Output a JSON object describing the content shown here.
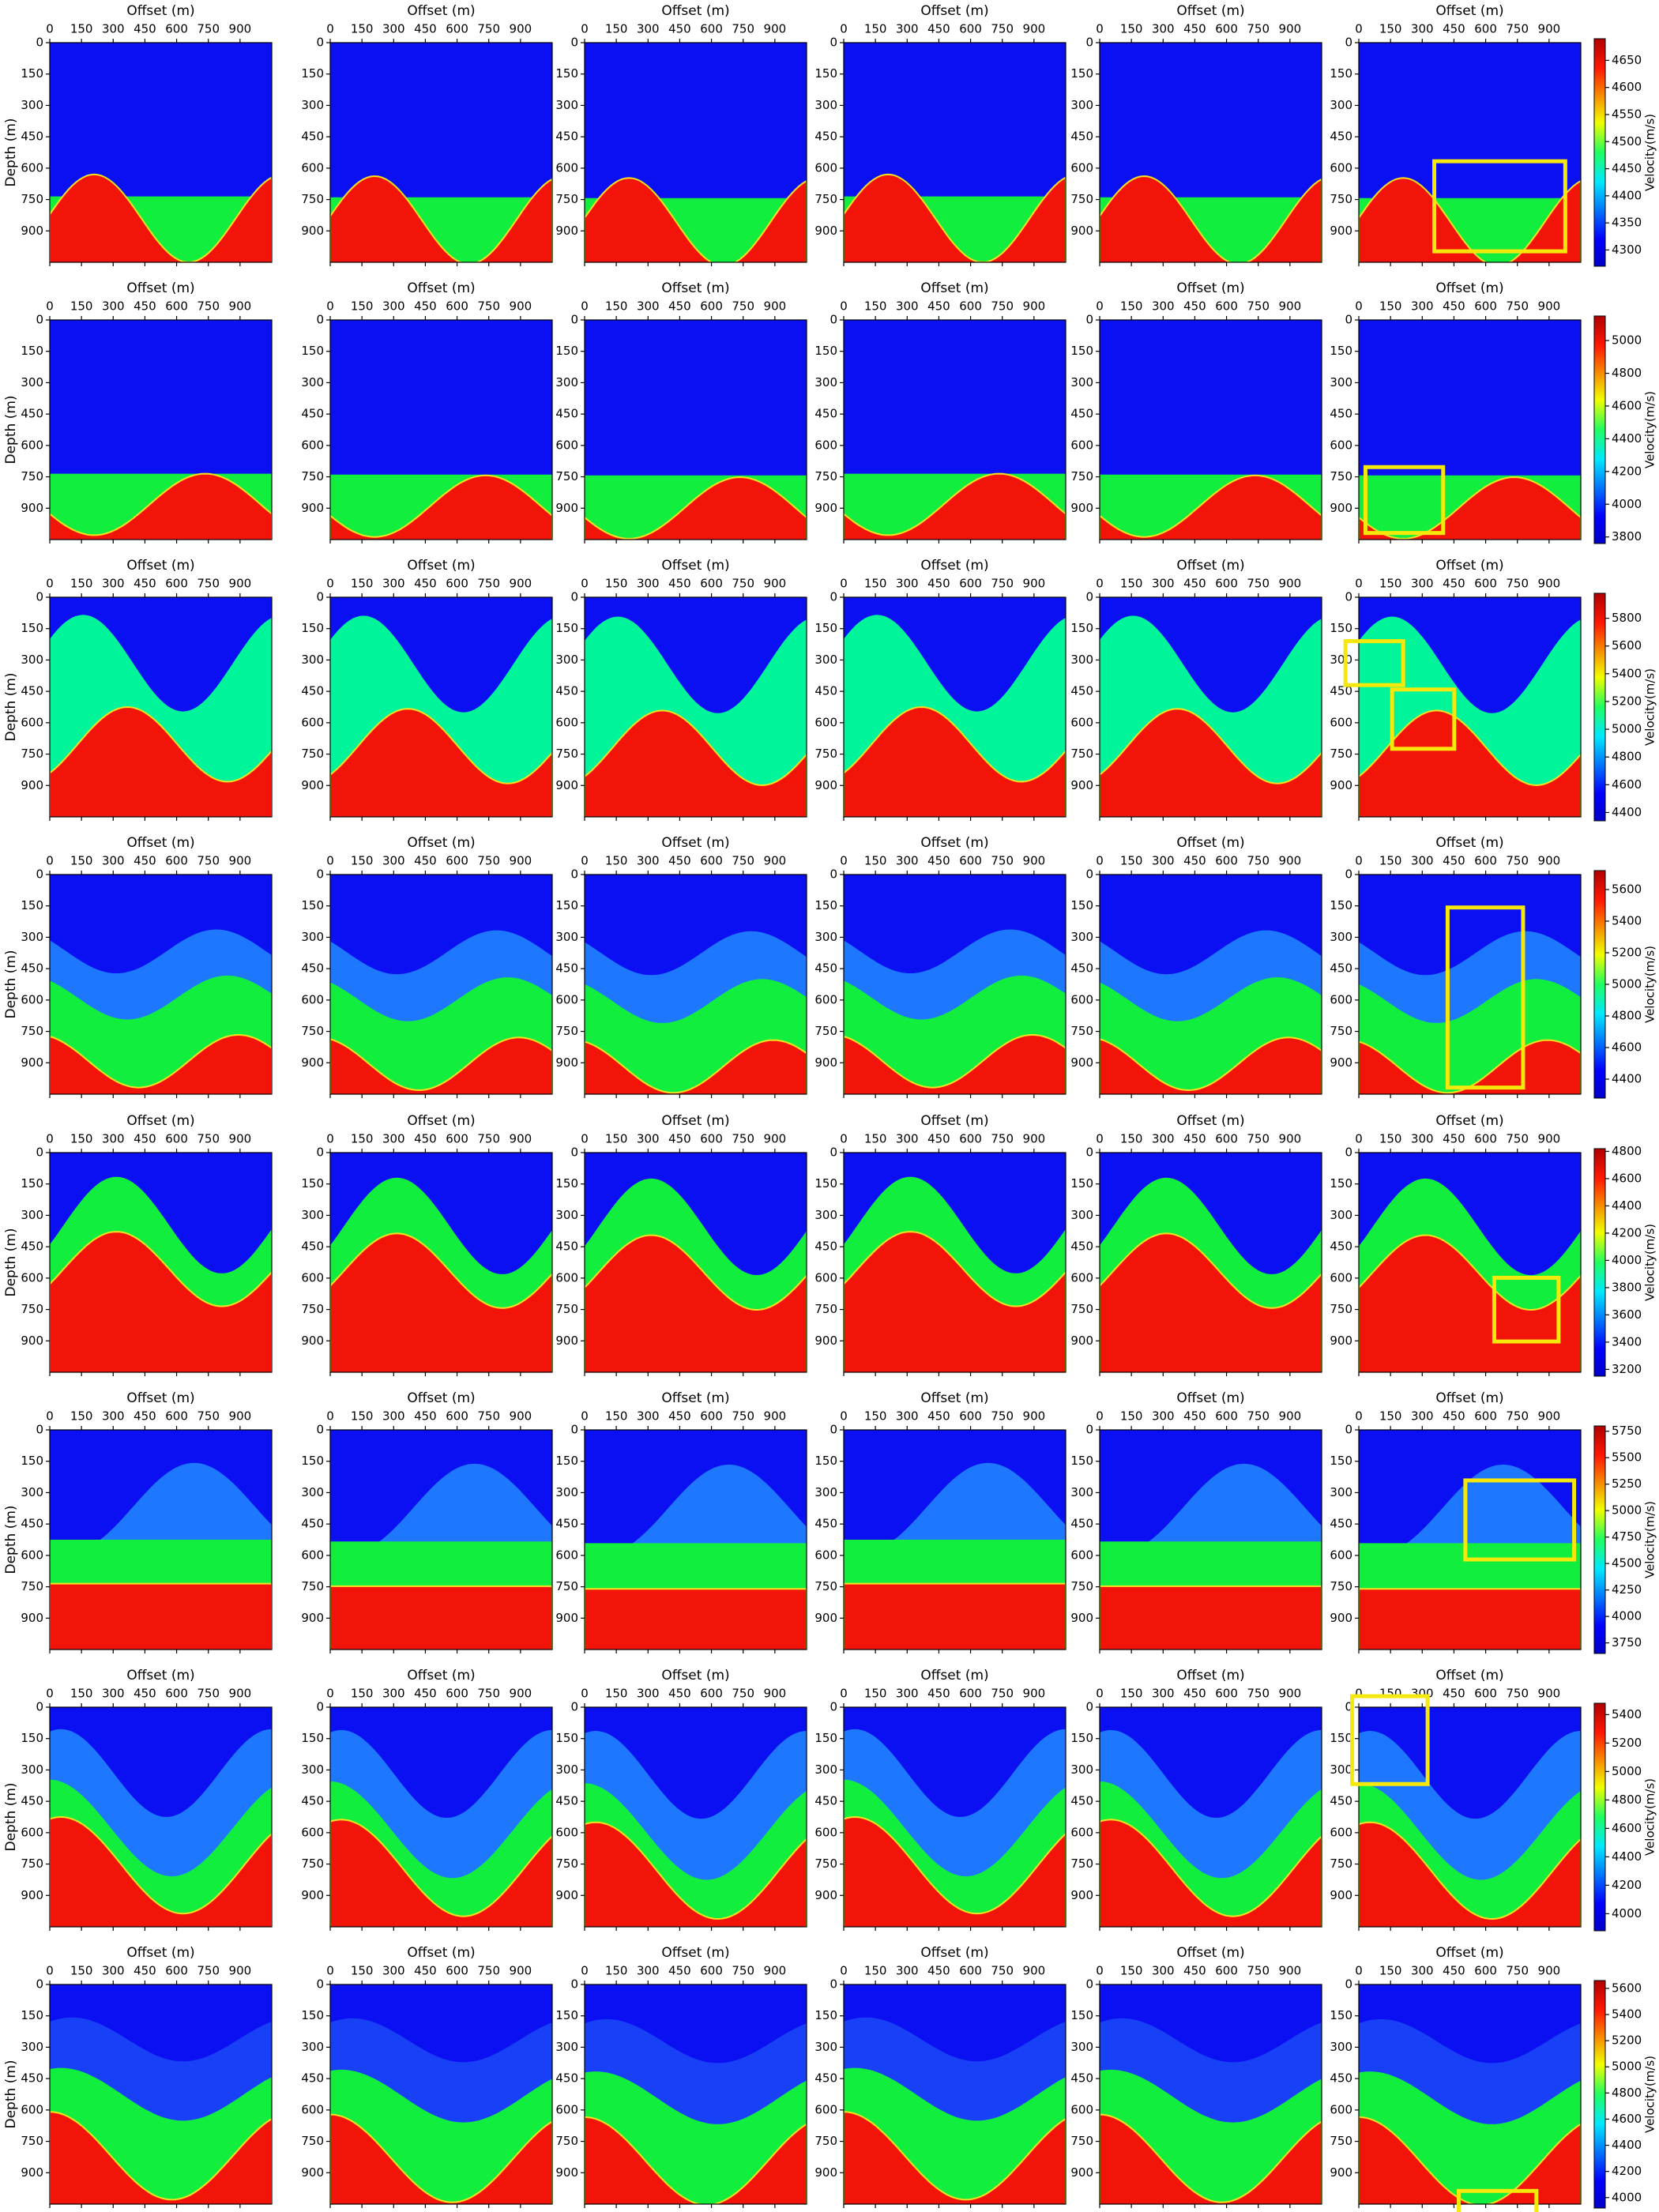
{
  "figure": {
    "panel_title": "Offset (m)",
    "y_label": "Depth (m)",
    "colorbar_label": "Velocity(m/s)",
    "xlim": [
      0,
      1050
    ],
    "ylim": [
      0,
      1050
    ],
    "xticks": [
      0,
      150,
      300,
      450,
      600,
      750,
      900
    ],
    "yticks": [
      0,
      150,
      300,
      450,
      600,
      750,
      900
    ],
    "rows": [
      {
        "clim": [
          4270,
          4690
        ],
        "cticks": [
          4300,
          4350,
          4400,
          4450,
          4500,
          4550,
          4600,
          4650
        ]
      },
      {
        "clim": [
          3760,
          5150
        ],
        "cticks": [
          3800,
          4000,
          4200,
          4400,
          4600,
          4800,
          5000
        ]
      },
      {
        "clim": [
          4340,
          5980
        ],
        "cticks": [
          4400,
          4600,
          4800,
          5000,
          5200,
          5400,
          5600,
          5800
        ]
      },
      {
        "clim": [
          4280,
          5720
        ],
        "cticks": [
          4400,
          4600,
          4800,
          5000,
          5200,
          5400,
          5600
        ]
      },
      {
        "clim": [
          3150,
          4820
        ],
        "cticks": [
          3200,
          3400,
          3600,
          3800,
          4000,
          4200,
          4400,
          4600,
          4800
        ]
      },
      {
        "clim": [
          3650,
          5800
        ],
        "cticks": [
          3750,
          4000,
          4250,
          4500,
          4750,
          5000,
          5250,
          5500,
          5750
        ]
      },
      {
        "clim": [
          3880,
          5480
        ],
        "cticks": [
          4000,
          4200,
          4400,
          4600,
          4800,
          5000,
          5200,
          5400
        ]
      },
      {
        "clim": [
          3920,
          5660
        ],
        "cticks": [
          4000,
          4200,
          4400,
          4600,
          4800,
          5000,
          5200,
          5400,
          5600
        ]
      }
    ]
  }
}
